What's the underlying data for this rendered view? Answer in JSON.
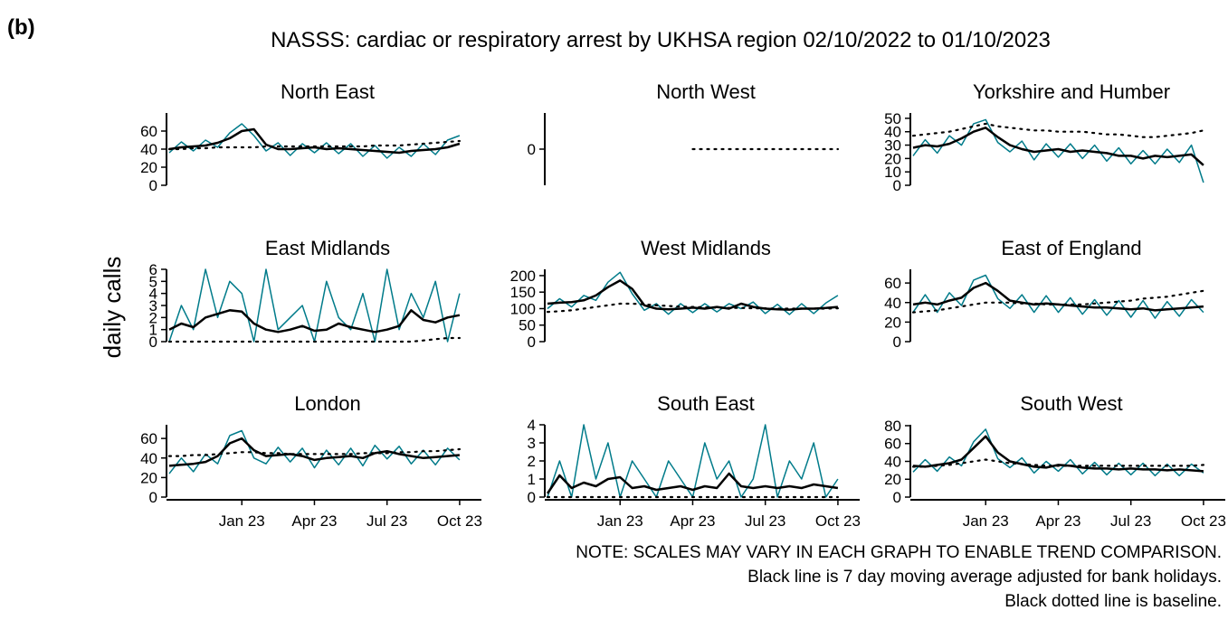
{
  "label": "(b)",
  "title": "NASSS: cardiac or respiratory arrest by UKHSA region 02/10/2022 to 01/10/2023",
  "ylabel": "daily calls",
  "notes": [
    "NOTE: SCALES MAY VARY IN EACH GRAPH TO ENABLE TREND COMPARISON.",
    "Black line is 7 day moving average adjusted for bank holidays.",
    "Black dotted line is baseline."
  ],
  "chart_data": [
    {
      "type": "line",
      "title": "North East",
      "x": [
        0,
        0.5,
        1,
        1.5,
        2,
        2.5,
        3,
        3.5,
        4,
        4.5,
        5,
        5.5,
        6,
        6.5,
        7,
        7.5,
        8,
        8.5,
        9,
        9.5,
        10,
        10.5,
        11,
        11.5,
        12
      ],
      "xlim": [
        0,
        12.9
      ],
      "ylim": [
        0,
        80
      ],
      "yticks": [
        0,
        20,
        40,
        60
      ],
      "series": [
        {
          "color": "#007b8a",
          "values": [
            36,
            48,
            38,
            50,
            42,
            58,
            68,
            55,
            38,
            47,
            33,
            46,
            36,
            47,
            35,
            46,
            32,
            44,
            30,
            42,
            32,
            46,
            34,
            50,
            55
          ]
        },
        {
          "color": "#000000",
          "width": 2.5,
          "values": [
            40,
            42,
            43,
            44,
            47,
            52,
            60,
            62,
            45,
            40,
            40,
            41,
            42,
            40,
            41,
            40,
            39,
            38,
            37,
            36,
            38,
            39,
            40,
            42,
            46
          ]
        },
        {
          "color": "#000000",
          "dash": true,
          "values": [
            40,
            40,
            41,
            41,
            42,
            42,
            42,
            42,
            43,
            43,
            43,
            43,
            43,
            43,
            43,
            43,
            43,
            44,
            44,
            44,
            45,
            46,
            47,
            48,
            49
          ]
        }
      ]
    },
    {
      "type": "line",
      "title": "North West",
      "x": [
        0,
        0.5,
        1,
        1.5,
        2,
        2.5,
        3,
        3.5,
        4,
        4.5,
        5,
        5.5,
        6,
        6.5,
        7,
        7.5,
        8,
        8.5,
        9,
        9.5,
        10,
        10.5,
        11,
        11.5,
        12
      ],
      "xlim": [
        0,
        12.9
      ],
      "ylim": [
        -1,
        1
      ],
      "yticks": [
        0
      ],
      "series": [
        {
          "color": "#000000",
          "dash": true,
          "values": [
            null,
            null,
            null,
            null,
            null,
            null,
            null,
            null,
            null,
            null,
            null,
            null,
            0,
            0,
            0,
            0,
            0,
            0,
            0,
            0,
            0,
            0,
            0,
            0,
            0
          ]
        }
      ]
    },
    {
      "type": "line",
      "title": "Yorkshire and Humber",
      "x": [
        0,
        0.5,
        1,
        1.5,
        2,
        2.5,
        3,
        3.5,
        4,
        4.5,
        5,
        5.5,
        6,
        6.5,
        7,
        7.5,
        8,
        8.5,
        9,
        9.5,
        10,
        10.5,
        11,
        11.5,
        12
      ],
      "xlim": [
        0,
        12.9
      ],
      "ylim": [
        0,
        54
      ],
      "yticks": [
        0,
        10,
        20,
        30,
        40,
        50
      ],
      "series": [
        {
          "color": "#007b8a",
          "values": [
            22,
            34,
            24,
            37,
            30,
            46,
            49,
            32,
            25,
            33,
            19,
            31,
            21,
            31,
            20,
            30,
            18,
            28,
            16,
            26,
            16,
            27,
            17,
            30,
            2
          ]
        },
        {
          "color": "#000000",
          "width": 2.5,
          "values": [
            28,
            30,
            29,
            31,
            35,
            40,
            43,
            36,
            30,
            27,
            25,
            26,
            27,
            25,
            26,
            25,
            24,
            22,
            22,
            20,
            22,
            21,
            22,
            23,
            15
          ]
        },
        {
          "color": "#000000",
          "dash": true,
          "values": [
            37,
            38,
            39,
            40,
            42,
            44,
            46,
            44,
            43,
            42,
            41,
            41,
            40,
            40,
            40,
            39,
            38,
            38,
            37,
            36,
            36,
            37,
            38,
            39,
            41
          ]
        }
      ]
    },
    {
      "type": "line",
      "title": "East Midlands",
      "x": [
        0,
        0.5,
        1,
        1.5,
        2,
        2.5,
        3,
        3.5,
        4,
        4.5,
        5,
        5.5,
        6,
        6.5,
        7,
        7.5,
        8,
        8.5,
        9,
        9.5,
        10,
        10.5,
        11,
        11.5,
        12
      ],
      "xlim": [
        0,
        12.9
      ],
      "ylim": [
        0,
        6
      ],
      "yticks": [
        0,
        1,
        2,
        3,
        4,
        5,
        6
      ],
      "series": [
        {
          "color": "#007b8a",
          "values": [
            0,
            3,
            1,
            6,
            2,
            5,
            4,
            0,
            6,
            1,
            2,
            3,
            0,
            5,
            2,
            1,
            4,
            0,
            6,
            1,
            4,
            2,
            5,
            0,
            4
          ]
        },
        {
          "color": "#000000",
          "width": 2.5,
          "values": [
            1,
            1.5,
            1.2,
            2,
            2.3,
            2.6,
            2.5,
            1.5,
            1,
            0.8,
            1,
            1.3,
            0.9,
            1,
            1.5,
            1.2,
            1,
            0.8,
            1,
            1.3,
            2.6,
            1.8,
            1.6,
            2,
            2.2
          ]
        },
        {
          "color": "#000000",
          "dash": true,
          "values": [
            0,
            0,
            0,
            0,
            0,
            0,
            0,
            0,
            0,
            0,
            0,
            0,
            0,
            0,
            0,
            0,
            0,
            0,
            0,
            0,
            0,
            0.1,
            0.2,
            0.3,
            0.3
          ]
        }
      ]
    },
    {
      "type": "line",
      "title": "West Midlands",
      "x": [
        0,
        0.5,
        1,
        1.5,
        2,
        2.5,
        3,
        3.5,
        4,
        4.5,
        5,
        5.5,
        6,
        6.5,
        7,
        7.5,
        8,
        8.5,
        9,
        9.5,
        10,
        10.5,
        11,
        11.5,
        12
      ],
      "xlim": [
        0,
        12.9
      ],
      "ylim": [
        0,
        219
      ],
      "yticks": [
        0,
        50,
        100,
        150,
        200
      ],
      "series": [
        {
          "color": "#007b8a",
          "values": [
            100,
            130,
            105,
            140,
            125,
            180,
            210,
            145,
            95,
            115,
            83,
            115,
            88,
            115,
            90,
            115,
            100,
            120,
            85,
            113,
            82,
            115,
            85,
            117,
            140
          ]
        },
        {
          "color": "#000000",
          "width": 2.5,
          "values": [
            115,
            118,
            120,
            125,
            140,
            165,
            185,
            160,
            110,
            100,
            98,
            100,
            103,
            100,
            105,
            100,
            115,
            105,
            100,
            98,
            97,
            100,
            100,
            102,
            105
          ]
        },
        {
          "color": "#000000",
          "dash": true,
          "values": [
            90,
            92,
            95,
            100,
            105,
            110,
            115,
            115,
            113,
            110,
            108,
            106,
            105,
            104,
            103,
            102,
            102,
            101,
            101,
            100,
            100,
            100,
            100,
            100,
            101
          ]
        }
      ]
    },
    {
      "type": "line",
      "title": "East of England",
      "x": [
        0,
        0.5,
        1,
        1.5,
        2,
        2.5,
        3,
        3.5,
        4,
        4.5,
        5,
        5.5,
        6,
        6.5,
        7,
        7.5,
        8,
        8.5,
        9,
        9.5,
        10,
        10.5,
        11,
        11.5,
        12
      ],
      "xlim": [
        0,
        12.9
      ],
      "ylim": [
        0,
        74
      ],
      "yticks": [
        0,
        20,
        40,
        60
      ],
      "series": [
        {
          "color": "#007b8a",
          "values": [
            30,
            48,
            30,
            50,
            37,
            63,
            68,
            44,
            34,
            48,
            30,
            47,
            30,
            45,
            28,
            43,
            27,
            42,
            25,
            42,
            24,
            41,
            26,
            43,
            30
          ]
        },
        {
          "color": "#000000",
          "width": 2.5,
          "values": [
            38,
            40,
            38,
            42,
            45,
            55,
            60,
            52,
            42,
            40,
            38,
            39,
            38,
            37,
            36,
            35,
            35,
            34,
            33,
            34,
            32,
            33,
            34,
            35,
            36
          ]
        },
        {
          "color": "#000000",
          "dash": true,
          "values": [
            30,
            31,
            32,
            34,
            36,
            38,
            40,
            40,
            40,
            39,
            39,
            38,
            38,
            38,
            38,
            39,
            40,
            41,
            42,
            44,
            45,
            46,
            48,
            50,
            52
          ]
        }
      ]
    },
    {
      "type": "line",
      "title": "London",
      "x": [
        0,
        0.5,
        1,
        1.5,
        2,
        2.5,
        3,
        3.5,
        4,
        4.5,
        5,
        5.5,
        6,
        6.5,
        7,
        7.5,
        8,
        8.5,
        9,
        9.5,
        10,
        10.5,
        11,
        11.5,
        12
      ],
      "xlim": [
        0,
        12.9
      ],
      "ylim": [
        0,
        74
      ],
      "yticks": [
        0,
        20,
        40,
        60
      ],
      "xticks": [
        {
          "value": 3,
          "label": "Jan 23"
        },
        {
          "value": 6,
          "label": "Apr 23"
        },
        {
          "value": 9,
          "label": "Jul 23"
        },
        {
          "value": 12,
          "label": "Oct 23"
        }
      ],
      "series": [
        {
          "color": "#007b8a",
          "values": [
            24,
            40,
            26,
            44,
            34,
            63,
            68,
            40,
            34,
            51,
            36,
            50,
            30,
            48,
            33,
            50,
            32,
            53,
            39,
            52,
            34,
            48,
            33,
            50,
            38
          ]
        },
        {
          "color": "#000000",
          "width": 2.5,
          "values": [
            32,
            33,
            34,
            36,
            42,
            55,
            60,
            48,
            42,
            43,
            44,
            42,
            38,
            40,
            41,
            42,
            40,
            45,
            47,
            44,
            42,
            40,
            41,
            42,
            43
          ]
        },
        {
          "color": "#000000",
          "dash": true,
          "values": [
            42,
            42,
            43,
            43,
            44,
            45,
            46,
            46,
            45,
            45,
            44,
            44,
            44,
            44,
            44,
            44,
            45,
            45,
            45,
            46,
            46,
            47,
            47,
            48,
            49
          ]
        }
      ]
    },
    {
      "type": "line",
      "title": "South East",
      "x": [
        0,
        0.5,
        1,
        1.5,
        2,
        2.5,
        3,
        3.5,
        4,
        4.5,
        5,
        5.5,
        6,
        6.5,
        7,
        7.5,
        8,
        8.5,
        9,
        9.5,
        10,
        10.5,
        11,
        11.5,
        12
      ],
      "xlim": [
        0,
        12.9
      ],
      "ylim": [
        0,
        4
      ],
      "yticks": [
        0,
        1,
        2,
        3,
        4
      ],
      "xticks": [
        {
          "value": 3,
          "label": "Jan 23"
        },
        {
          "value": 6,
          "label": "Apr 23"
        },
        {
          "value": 9,
          "label": "Jul 23"
        },
        {
          "value": 12,
          "label": "Oct 23"
        }
      ],
      "series": [
        {
          "color": "#007b8a",
          "values": [
            0,
            2,
            0,
            4,
            1,
            3,
            0,
            2,
            1,
            0,
            2,
            1,
            0,
            3,
            1,
            2,
            0,
            1,
            4,
            0,
            2,
            1,
            3,
            0,
            1
          ]
        },
        {
          "color": "#000000",
          "width": 2.5,
          "values": [
            0.2,
            1.2,
            0.5,
            0.8,
            0.6,
            1,
            1.1,
            0.5,
            0.6,
            0.4,
            0.5,
            0.6,
            0.4,
            0.6,
            0.5,
            1.3,
            0.6,
            0.5,
            0.6,
            0.5,
            0.6,
            0.5,
            0.7,
            0.6,
            0.5
          ]
        },
        {
          "color": "#000000",
          "dash": true,
          "values": [
            0,
            0,
            0,
            0,
            0,
            0,
            0,
            0,
            0,
            0,
            0,
            0,
            0,
            0,
            0,
            0,
            0,
            0,
            0,
            0,
            0,
            0,
            0,
            0,
            0
          ]
        }
      ]
    },
    {
      "type": "line",
      "title": "South West",
      "x": [
        0,
        0.5,
        1,
        1.5,
        2,
        2.5,
        3,
        3.5,
        4,
        4.5,
        5,
        5.5,
        6,
        6.5,
        7,
        7.5,
        8,
        8.5,
        9,
        9.5,
        10,
        10.5,
        11,
        11.5,
        12
      ],
      "xlim": [
        0,
        12.9
      ],
      "ylim": [
        0,
        81
      ],
      "yticks": [
        0,
        20,
        40,
        60,
        80
      ],
      "xticks": [
        {
          "value": 3,
          "label": "Jan 23"
        },
        {
          "value": 6,
          "label": "Apr 23"
        },
        {
          "value": 9,
          "label": "Jul 23"
        },
        {
          "value": 12,
          "label": "Oct 23"
        }
      ],
      "series": [
        {
          "color": "#007b8a",
          "values": [
            28,
            42,
            29,
            45,
            35,
            62,
            76,
            43,
            33,
            44,
            27,
            40,
            29,
            42,
            26,
            39,
            25,
            38,
            25,
            38,
            24,
            37,
            24,
            37,
            27
          ]
        },
        {
          "color": "#000000",
          "width": 2.5,
          "values": [
            35,
            34,
            36,
            38,
            42,
            55,
            68,
            50,
            40,
            37,
            34,
            33,
            36,
            35,
            33,
            32,
            32,
            31,
            32,
            31,
            31,
            30,
            31,
            30,
            29
          ]
        },
        {
          "color": "#000000",
          "dash": true,
          "values": [
            34,
            34,
            35,
            36,
            38,
            40,
            42,
            40,
            38,
            37,
            36,
            35,
            35,
            35,
            35,
            35,
            35,
            35,
            35,
            35,
            35,
            35,
            35,
            35,
            36
          ]
        }
      ]
    }
  ]
}
